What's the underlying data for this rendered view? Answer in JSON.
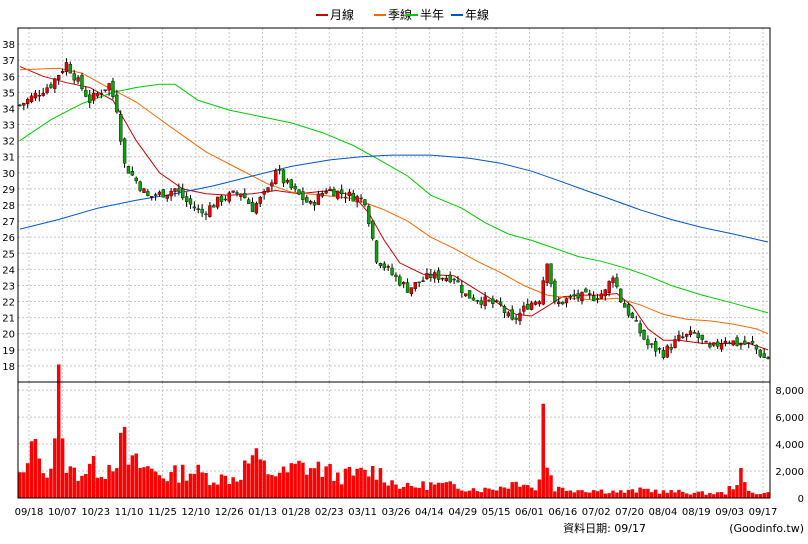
{
  "legend": [
    {
      "label": "月線",
      "color": "#cc0000"
    },
    {
      "label": "季線",
      "color": "#ff6600"
    },
    {
      "label": "半年",
      "color": "#00cc00"
    },
    {
      "label": "年線",
      "color": "#0055cc"
    }
  ],
  "footer": {
    "label": "資料日期: 09/17",
    "source": "(Goodinfo.tw)"
  },
  "chart_data": {
    "type": "candlestick",
    "price_axis": {
      "min": 18,
      "max": 38,
      "ticks": [
        18,
        19,
        20,
        21,
        22,
        23,
        24,
        25,
        26,
        27,
        28,
        29,
        30,
        31,
        32,
        33,
        34,
        35,
        36,
        37,
        38
      ]
    },
    "volume_axis": {
      "min": 0,
      "max": 8000,
      "tick_labels": [
        "0",
        "2,000",
        "4,000",
        "6,000",
        "8,000"
      ],
      "tick_values": [
        0,
        2000,
        4000,
        6000,
        8000
      ]
    },
    "x_tick_labels": [
      "09/18",
      "10/07",
      "10/23",
      "11/10",
      "11/25",
      "12/10",
      "12/26",
      "01/13",
      "01/28",
      "02/23",
      "03/11",
      "03/26",
      "04/14",
      "04/29",
      "05/15",
      "06/01",
      "06/16",
      "07/02",
      "07/20",
      "08/04",
      "08/19",
      "09/03",
      "09/17"
    ],
    "grid": true,
    "close_anchors": [
      [
        0,
        34.2
      ],
      [
        8,
        35.5
      ],
      [
        12,
        36.8
      ],
      [
        18,
        34.5
      ],
      [
        23,
        35.5
      ],
      [
        25,
        34.0
      ],
      [
        27,
        30.5
      ],
      [
        33,
        28.5
      ],
      [
        38,
        28.8
      ],
      [
        40,
        29.0
      ],
      [
        43,
        28.2
      ],
      [
        47,
        27.5
      ],
      [
        52,
        28.4
      ],
      [
        57,
        28.8
      ],
      [
        60,
        27.8
      ],
      [
        64,
        28.9
      ],
      [
        66,
        30.3
      ],
      [
        68,
        29.5
      ],
      [
        71,
        28.8
      ],
      [
        75,
        28.0
      ],
      [
        79,
        29.0
      ],
      [
        85,
        28.6
      ],
      [
        89,
        28.3
      ],
      [
        92,
        24.7
      ],
      [
        96,
        23.7
      ],
      [
        100,
        22.8
      ],
      [
        106,
        23.6
      ],
      [
        112,
        23.5
      ],
      [
        115,
        22.4
      ],
      [
        119,
        22.1
      ],
      [
        124,
        21.7
      ],
      [
        127,
        20.7
      ],
      [
        131,
        21.8
      ],
      [
        134,
        22.2
      ],
      [
        136,
        24.6
      ],
      [
        138,
        21.8
      ],
      [
        143,
        22.3
      ],
      [
        148,
        22.3
      ],
      [
        151,
        22.6
      ],
      [
        153,
        23.7
      ],
      [
        155,
        22.1
      ],
      [
        159,
        20.5
      ],
      [
        162,
        19.3
      ],
      [
        166,
        18.8
      ],
      [
        170,
        19.7
      ],
      [
        174,
        20.0
      ],
      [
        178,
        19.0
      ],
      [
        182,
        19.7
      ],
      [
        185,
        19.4
      ],
      [
        189,
        19.3
      ],
      [
        192,
        18.5
      ]
    ],
    "volume_anchors": [
      [
        0,
        1800
      ],
      [
        2,
        2200
      ],
      [
        4,
        6900
      ],
      [
        5,
        2500
      ],
      [
        8,
        2600
      ],
      [
        10,
        9000
      ],
      [
        11,
        3800
      ],
      [
        13,
        2200
      ],
      [
        16,
        2100
      ],
      [
        18,
        2600
      ],
      [
        22,
        2300
      ],
      [
        27,
        4500
      ],
      [
        28,
        3000
      ],
      [
        33,
        2400
      ],
      [
        38,
        1800
      ],
      [
        44,
        2300
      ],
      [
        50,
        1600
      ],
      [
        56,
        1700
      ],
      [
        60,
        3400
      ],
      [
        64,
        2200
      ],
      [
        68,
        2000
      ],
      [
        72,
        2600
      ],
      [
        78,
        2400
      ],
      [
        82,
        1800
      ],
      [
        88,
        2000
      ],
      [
        92,
        2300
      ],
      [
        96,
        1300
      ],
      [
        100,
        900
      ],
      [
        106,
        1100
      ],
      [
        112,
        1000
      ],
      [
        116,
        800
      ],
      [
        120,
        700
      ],
      [
        124,
        900
      ],
      [
        130,
        1500
      ],
      [
        133,
        600
      ],
      [
        134,
        2000
      ],
      [
        135,
        7000
      ],
      [
        136,
        3000
      ],
      [
        138,
        800
      ],
      [
        144,
        700
      ],
      [
        150,
        600
      ],
      [
        156,
        500
      ],
      [
        162,
        700
      ],
      [
        166,
        500
      ],
      [
        170,
        500
      ],
      [
        176,
        400
      ],
      [
        182,
        400
      ],
      [
        186,
        1800
      ],
      [
        188,
        500
      ],
      [
        192,
        400
      ]
    ],
    "ma_series": [
      {
        "name": "月線",
        "points": [
          [
            0,
            36.6
          ],
          [
            6,
            36.0
          ],
          [
            12,
            35.6
          ],
          [
            18,
            35.3
          ],
          [
            24,
            34.5
          ],
          [
            30,
            32.0
          ],
          [
            36,
            30.0
          ],
          [
            42,
            29.0
          ],
          [
            48,
            28.7
          ],
          [
            54,
            28.6
          ],
          [
            60,
            28.7
          ],
          [
            66,
            28.9
          ],
          [
            72,
            28.7
          ],
          [
            80,
            28.9
          ],
          [
            86,
            28.6
          ],
          [
            90,
            27.5
          ],
          [
            94,
            25.8
          ],
          [
            98,
            24.4
          ],
          [
            104,
            23.7
          ],
          [
            112,
            23.6
          ],
          [
            118,
            22.7
          ],
          [
            124,
            21.8
          ],
          [
            128,
            21.2
          ],
          [
            132,
            21.1
          ],
          [
            136,
            21.7
          ],
          [
            140,
            22.3
          ],
          [
            145,
            22.4
          ],
          [
            150,
            22.4
          ],
          [
            154,
            22.5
          ],
          [
            158,
            21.7
          ],
          [
            162,
            20.3
          ],
          [
            166,
            19.6
          ],
          [
            170,
            19.6
          ],
          [
            176,
            19.4
          ],
          [
            182,
            19.4
          ],
          [
            188,
            19.4
          ],
          [
            193,
            19.0
          ]
        ]
      },
      {
        "name": "季線",
        "points": [
          [
            0,
            36.4
          ],
          [
            10,
            36.5
          ],
          [
            16,
            36.2
          ],
          [
            22,
            35.4
          ],
          [
            30,
            34.4
          ],
          [
            38,
            33.0
          ],
          [
            48,
            31.3
          ],
          [
            56,
            30.3
          ],
          [
            64,
            29.3
          ],
          [
            70,
            28.8
          ],
          [
            78,
            28.6
          ],
          [
            86,
            28.4
          ],
          [
            94,
            27.7
          ],
          [
            100,
            27.0
          ],
          [
            106,
            26.0
          ],
          [
            112,
            25.3
          ],
          [
            118,
            24.5
          ],
          [
            124,
            23.8
          ],
          [
            130,
            23.0
          ],
          [
            136,
            22.4
          ],
          [
            142,
            22.2
          ],
          [
            148,
            22.1
          ],
          [
            154,
            22.2
          ],
          [
            160,
            21.8
          ],
          [
            166,
            21.2
          ],
          [
            172,
            20.9
          ],
          [
            178,
            20.8
          ],
          [
            184,
            20.6
          ],
          [
            190,
            20.3
          ],
          [
            193,
            20.0
          ]
        ]
      },
      {
        "name": "半年",
        "points": [
          [
            0,
            32.0
          ],
          [
            8,
            33.3
          ],
          [
            16,
            34.3
          ],
          [
            24,
            35.0
          ],
          [
            30,
            35.3
          ],
          [
            36,
            35.5
          ],
          [
            40,
            35.5
          ],
          [
            46,
            34.5
          ],
          [
            54,
            33.9
          ],
          [
            62,
            33.5
          ],
          [
            70,
            33.1
          ],
          [
            78,
            32.5
          ],
          [
            86,
            31.7
          ],
          [
            92,
            30.9
          ],
          [
            100,
            29.8
          ],
          [
            106,
            28.6
          ],
          [
            114,
            27.8
          ],
          [
            120,
            26.9
          ],
          [
            126,
            26.2
          ],
          [
            132,
            25.8
          ],
          [
            138,
            25.3
          ],
          [
            144,
            24.8
          ],
          [
            150,
            24.5
          ],
          [
            156,
            24.1
          ],
          [
            162,
            23.6
          ],
          [
            168,
            23.0
          ],
          [
            176,
            22.4
          ],
          [
            184,
            21.9
          ],
          [
            190,
            21.5
          ],
          [
            193,
            21.3
          ]
        ]
      },
      {
        "name": "年線",
        "points": [
          [
            0,
            26.5
          ],
          [
            10,
            27.1
          ],
          [
            20,
            27.8
          ],
          [
            30,
            28.3
          ],
          [
            40,
            28.7
          ],
          [
            50,
            29.2
          ],
          [
            60,
            29.8
          ],
          [
            70,
            30.4
          ],
          [
            80,
            30.8
          ],
          [
            88,
            31.0
          ],
          [
            96,
            31.1
          ],
          [
            106,
            31.1
          ],
          [
            116,
            30.9
          ],
          [
            124,
            30.6
          ],
          [
            132,
            30.1
          ],
          [
            138,
            29.6
          ],
          [
            146,
            28.9
          ],
          [
            152,
            28.4
          ],
          [
            160,
            27.7
          ],
          [
            168,
            27.1
          ],
          [
            176,
            26.6
          ],
          [
            184,
            26.2
          ],
          [
            193,
            25.7
          ]
        ]
      }
    ]
  }
}
